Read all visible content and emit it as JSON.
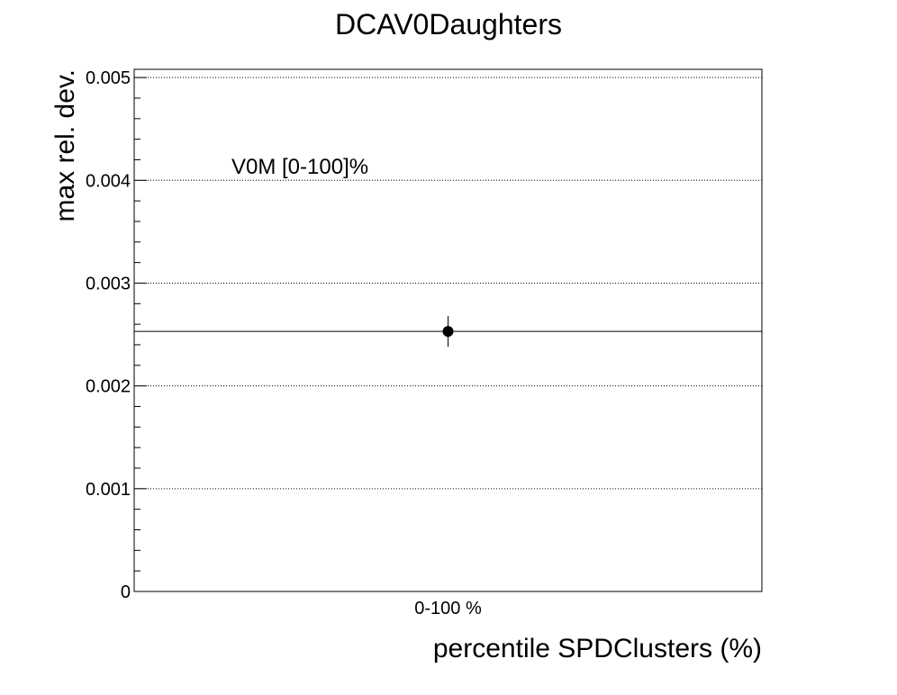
{
  "chart_data": {
    "type": "scatter",
    "title": "DCAV0Daughters",
    "xlabel": "percentile SPDClusters (%)",
    "ylabel": "max rel. dev.",
    "categories": [
      "0-100 %"
    ],
    "ylim": [
      0,
      0.00508
    ],
    "yticks": [
      0,
      0.001,
      0.002,
      0.003,
      0.004,
      0.005
    ],
    "ytick_labels": [
      "0",
      "0.001",
      "0.002",
      "0.003",
      "0.004",
      "0.005"
    ],
    "grid": true,
    "annotation": "V0M [0-100]%",
    "reference_line": 0.00253,
    "points": [
      {
        "category": "0-100 %",
        "y": 0.00253,
        "yerr": 0.00015
      }
    ]
  }
}
